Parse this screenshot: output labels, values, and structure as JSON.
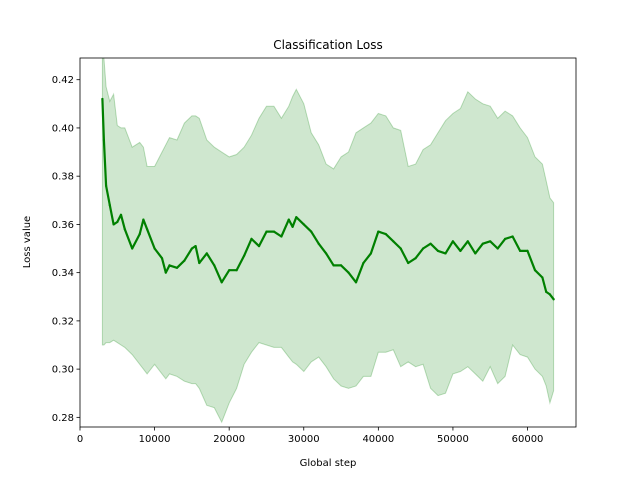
{
  "chart_data": {
    "type": "line",
    "title": "Classification Loss",
    "xlabel": "Global step",
    "ylabel": "Loss value",
    "xlim": [
      0,
      66500
    ],
    "ylim": [
      0.276,
      0.429
    ],
    "xticks": [
      0,
      10000,
      20000,
      30000,
      40000,
      50000,
      60000
    ],
    "xtick_labels": [
      "0",
      "10000",
      "20000",
      "30000",
      "40000",
      "50000",
      "60000"
    ],
    "yticks": [
      0.28,
      0.3,
      0.32,
      0.34,
      0.36,
      0.38,
      0.4,
      0.42
    ],
    "ytick_labels": [
      "0.28",
      "0.30",
      "0.32",
      "0.34",
      "0.36",
      "0.38",
      "0.40",
      "0.42"
    ],
    "grid": false,
    "colors": {
      "line": "#008000",
      "band_fill": "#008000",
      "band_alpha": 0.19
    },
    "series": [
      {
        "x": [
          3000,
          3200,
          3500,
          4000,
          4500,
          5000,
          5500,
          6000,
          7000,
          8000,
          8500,
          9000,
          10000,
          11000,
          11500,
          12000,
          13000,
          14000,
          15000,
          15500,
          16000,
          17000,
          18000,
          19000,
          20000,
          21000,
          22000,
          23000,
          24000,
          25000,
          26000,
          27000,
          28000,
          28500,
          29000,
          30000,
          31000,
          32000,
          33000,
          34000,
          35000,
          36000,
          37000,
          38000,
          39000,
          40000,
          41000,
          42000,
          43000,
          44000,
          45000,
          46000,
          47000,
          48000,
          49000,
          50000,
          51000,
          52000,
          53000,
          54000,
          55000,
          56000,
          57000,
          58000,
          59000,
          60000,
          61000,
          62000,
          62500,
          63000,
          63500
        ],
        "y": [
          0.412,
          0.395,
          0.376,
          0.368,
          0.36,
          0.361,
          0.364,
          0.358,
          0.35,
          0.356,
          0.362,
          0.358,
          0.35,
          0.346,
          0.34,
          0.343,
          0.342,
          0.345,
          0.35,
          0.351,
          0.344,
          0.348,
          0.343,
          0.336,
          0.341,
          0.341,
          0.347,
          0.354,
          0.351,
          0.357,
          0.357,
          0.355,
          0.362,
          0.359,
          0.363,
          0.36,
          0.357,
          0.352,
          0.348,
          0.343,
          0.343,
          0.34,
          0.336,
          0.344,
          0.348,
          0.357,
          0.356,
          0.353,
          0.35,
          0.344,
          0.346,
          0.35,
          0.352,
          0.349,
          0.348,
          0.353,
          0.349,
          0.353,
          0.348,
          0.352,
          0.353,
          0.35,
          0.354,
          0.355,
          0.349,
          0.349,
          0.341,
          0.338,
          0.332,
          0.331,
          0.329
        ],
        "upper": [
          0.429,
          0.429,
          0.417,
          0.411,
          0.414,
          0.401,
          0.4,
          0.4,
          0.392,
          0.394,
          0.392,
          0.384,
          0.384,
          0.39,
          0.393,
          0.396,
          0.395,
          0.402,
          0.405,
          0.405,
          0.404,
          0.395,
          0.392,
          0.39,
          0.388,
          0.389,
          0.392,
          0.397,
          0.404,
          0.409,
          0.409,
          0.404,
          0.409,
          0.413,
          0.416,
          0.41,
          0.398,
          0.393,
          0.385,
          0.383,
          0.388,
          0.39,
          0.398,
          0.4,
          0.402,
          0.406,
          0.405,
          0.4,
          0.399,
          0.384,
          0.385,
          0.391,
          0.393,
          0.398,
          0.403,
          0.406,
          0.408,
          0.415,
          0.412,
          0.41,
          0.409,
          0.404,
          0.407,
          0.405,
          0.4,
          0.396,
          0.388,
          0.385,
          0.378,
          0.371,
          0.369
        ],
        "lower": [
          0.31,
          0.31,
          0.311,
          0.311,
          0.312,
          0.311,
          0.31,
          0.309,
          0.306,
          0.302,
          0.3,
          0.298,
          0.302,
          0.298,
          0.296,
          0.298,
          0.297,
          0.295,
          0.294,
          0.294,
          0.292,
          0.285,
          0.284,
          0.278,
          0.286,
          0.292,
          0.302,
          0.307,
          0.311,
          0.31,
          0.309,
          0.309,
          0.305,
          0.303,
          0.302,
          0.299,
          0.303,
          0.305,
          0.301,
          0.296,
          0.293,
          0.292,
          0.293,
          0.297,
          0.297,
          0.307,
          0.307,
          0.308,
          0.301,
          0.303,
          0.301,
          0.302,
          0.292,
          0.289,
          0.29,
          0.298,
          0.299,
          0.301,
          0.298,
          0.295,
          0.301,
          0.294,
          0.297,
          0.31,
          0.306,
          0.305,
          0.3,
          0.297,
          0.293,
          0.286,
          0.291
        ]
      }
    ]
  }
}
